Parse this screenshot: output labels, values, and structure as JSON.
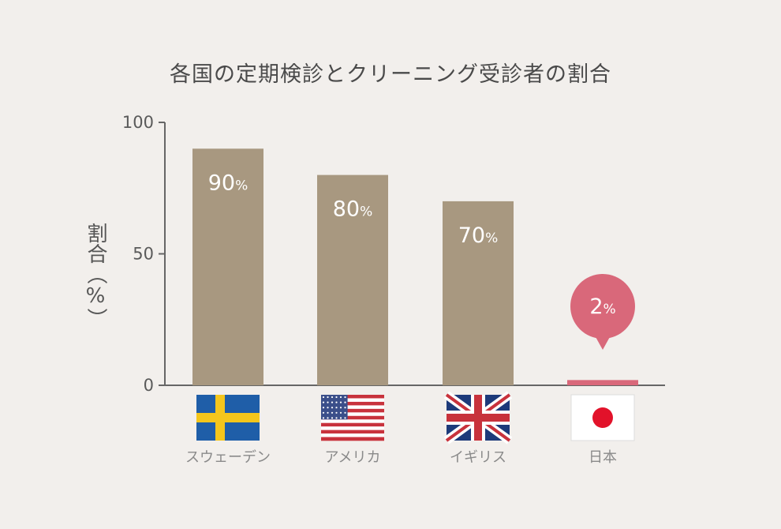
{
  "chart_data": {
    "type": "bar",
    "title": "各国の定期検診とクリーニング受診者の割合",
    "ylabel": "割合（%）",
    "xlabel": "",
    "ylim": [
      0,
      100
    ],
    "yticks": [
      "0",
      "50",
      "100"
    ],
    "categories": [
      "スウェーデン",
      "アメリカ",
      "イギリス",
      "日本"
    ],
    "values": [
      90,
      80,
      70,
      2
    ],
    "value_labels": [
      "90",
      "80",
      "70",
      "2"
    ],
    "value_unit": "%",
    "flags": [
      "sweden-flag-icon",
      "usa-flag-icon",
      "uk-flag-icon",
      "japan-flag-icon"
    ],
    "highlight_index": 3,
    "grid": false,
    "colors": {
      "bar": "#a89880",
      "highlight": "#d9687a",
      "axis": "#666666",
      "background": "#f2efec"
    }
  }
}
